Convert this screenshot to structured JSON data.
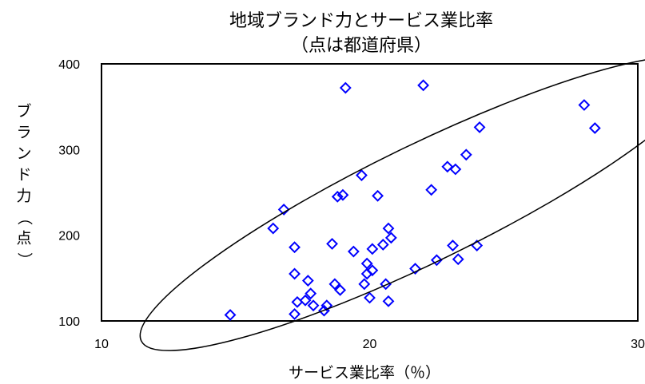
{
  "chart_data": {
    "type": "scatter",
    "title": "地域ブランド力とサービス業比率",
    "subtitle": "（点は都道府県）",
    "xlabel": "サービス業比率（％）",
    "ylabel": "ブランド力（点）",
    "xlim": [
      10,
      30
    ],
    "ylim": [
      100,
      400
    ],
    "xticks": [
      "10",
      "20",
      "30"
    ],
    "yticks": [
      "100",
      "200",
      "300",
      "400"
    ],
    "grid": false,
    "legend": "none",
    "marker": "diamond",
    "marker_color": "#0000ff",
    "points": [
      {
        "x": 14.8,
        "y": 107
      },
      {
        "x": 16.4,
        "y": 208
      },
      {
        "x": 16.8,
        "y": 230
      },
      {
        "x": 17.2,
        "y": 108
      },
      {
        "x": 17.2,
        "y": 186
      },
      {
        "x": 17.2,
        "y": 155
      },
      {
        "x": 17.3,
        "y": 122
      },
      {
        "x": 17.6,
        "y": 124
      },
      {
        "x": 17.7,
        "y": 147
      },
      {
        "x": 17.8,
        "y": 132
      },
      {
        "x": 17.9,
        "y": 118
      },
      {
        "x": 18.3,
        "y": 112
      },
      {
        "x": 18.4,
        "y": 118
      },
      {
        "x": 18.6,
        "y": 190
      },
      {
        "x": 18.7,
        "y": 143
      },
      {
        "x": 18.8,
        "y": 245
      },
      {
        "x": 18.9,
        "y": 136
      },
      {
        "x": 19.0,
        "y": 247
      },
      {
        "x": 19.1,
        "y": 372
      },
      {
        "x": 19.4,
        "y": 181
      },
      {
        "x": 19.7,
        "y": 270
      },
      {
        "x": 19.8,
        "y": 143
      },
      {
        "x": 19.9,
        "y": 155
      },
      {
        "x": 19.9,
        "y": 167
      },
      {
        "x": 20.0,
        "y": 127
      },
      {
        "x": 20.1,
        "y": 159
      },
      {
        "x": 20.1,
        "y": 184
      },
      {
        "x": 20.3,
        "y": 246
      },
      {
        "x": 20.5,
        "y": 189
      },
      {
        "x": 20.6,
        "y": 143
      },
      {
        "x": 20.7,
        "y": 123
      },
      {
        "x": 20.7,
        "y": 208
      },
      {
        "x": 20.8,
        "y": 197
      },
      {
        "x": 21.7,
        "y": 161
      },
      {
        "x": 22.0,
        "y": 375
      },
      {
        "x": 22.3,
        "y": 253
      },
      {
        "x": 22.5,
        "y": 171
      },
      {
        "x": 22.9,
        "y": 280
      },
      {
        "x": 23.1,
        "y": 188
      },
      {
        "x": 23.2,
        "y": 277
      },
      {
        "x": 23.3,
        "y": 172
      },
      {
        "x": 23.6,
        "y": 294
      },
      {
        "x": 24.0,
        "y": 188
      },
      {
        "x": 24.1,
        "y": 326
      },
      {
        "x": 28.0,
        "y": 352
      },
      {
        "x": 28.4,
        "y": 325
      }
    ],
    "annotations": [
      {
        "type": "ellipse",
        "center": [
          22.0,
          237
        ],
        "rx_data": 11.7,
        "ry_data": 68,
        "angle_deg": -26
      }
    ]
  }
}
